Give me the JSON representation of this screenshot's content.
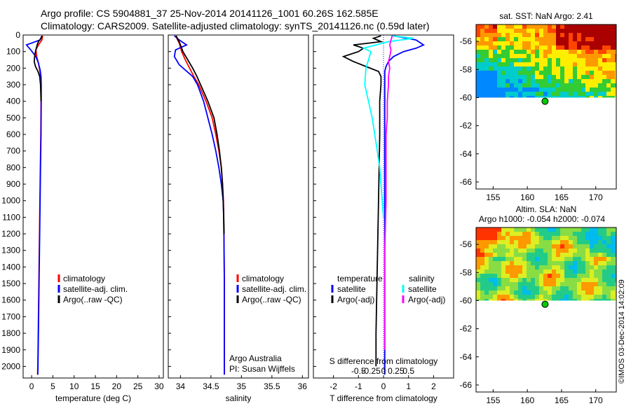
{
  "header": {
    "line1": "Argo profile: CS 5904881_37 25-Nov-2014 20141126_1001 60.26S 162.585E",
    "line2": "Climatology: CARS2009. Satellite-adjusted climatology: synTS_20141126.nc (0.59d later)"
  },
  "colors": {
    "climatology": "#ff0000",
    "satellite": "#0000ff",
    "argo": "#000000",
    "satellite_salinity": "#00ffff",
    "argo_salinity": "#ff00ff",
    "argo_marker": "#00cc00"
  },
  "chart_data": [
    {
      "id": "temperature",
      "type": "line",
      "xlabel": "temperature (deg C)",
      "ylabel": "",
      "xlim": [
        -2,
        31
      ],
      "ylim": [
        2070,
        0
      ],
      "x_ticks": [
        0,
        5,
        10,
        15,
        20,
        25,
        30
      ],
      "y_ticks": [
        0,
        100,
        200,
        300,
        400,
        500,
        600,
        700,
        800,
        900,
        1000,
        1100,
        1200,
        1300,
        1400,
        1500,
        1600,
        1700,
        1800,
        1900,
        2000
      ],
      "legend": {
        "entries": [
          "climatology",
          "satellite-adj. clim.",
          "Argo(..raw -QC)"
        ],
        "position": "lower-center"
      },
      "series": [
        {
          "name": "climatology",
          "color": "#ff0000",
          "depth": [
            5,
            30,
            60,
            90,
            130,
            170,
            210,
            250,
            300,
            400,
            600,
            800,
            1000,
            1200,
            1400,
            1600,
            1800,
            2000,
            2050
          ],
          "values": [
            2.6,
            2.4,
            1.6,
            1.0,
            1.2,
            1.6,
            1.9,
            2.1,
            2.2,
            2.2,
            2.15,
            2.05,
            1.95,
            1.85,
            1.75,
            1.65,
            1.55,
            1.45,
            1.4
          ]
        },
        {
          "name": "satellite-adj. clim.",
          "color": "#0000ff",
          "depth": [
            5,
            30,
            60,
            90,
            130,
            170,
            210,
            250,
            300,
            400,
            600,
            800,
            1000,
            1200,
            1400,
            1600,
            1800,
            2000,
            2050
          ],
          "values": [
            2.4,
            2.0,
            -1.2,
            -0.2,
            1.0,
            1.6,
            2.0,
            2.2,
            2.25,
            2.25,
            2.2,
            2.1,
            2.0,
            1.9,
            1.8,
            1.7,
            1.6,
            1.5,
            1.45
          ]
        },
        {
          "name": "Argo(..raw -QC)",
          "color": "#000000",
          "depth": [
            5,
            20,
            40,
            60,
            80,
            100,
            130,
            160,
            190,
            220,
            250,
            300,
            400
          ],
          "values": [
            2.5,
            2.2,
            1.6,
            1.3,
            1.1,
            0.9,
            0.7,
            0.6,
            0.9,
            1.5,
            1.9,
            2.1,
            2.2
          ]
        }
      ]
    },
    {
      "id": "salinity",
      "type": "line",
      "xlabel": "salinity",
      "ylabel": "",
      "xlim": [
        33.8,
        36.1
      ],
      "ylim": [
        2070,
        0
      ],
      "x_ticks": [
        34,
        34.5,
        35,
        35.5,
        36
      ],
      "legend": {
        "entries": [
          "climatology",
          "satellite-adj. clim.",
          "Argo(..raw -QC)"
        ],
        "position": "lower-center"
      },
      "annotations": [
        "Argo Australia",
        "PI: Susan Wijffels"
      ],
      "series": [
        {
          "name": "climatology",
          "color": "#ff0000",
          "depth": [
            5,
            50,
            100,
            150,
            200,
            250,
            300,
            400,
            500,
            600,
            700,
            800,
            900,
            1000,
            1100,
            1300,
            1500,
            1700,
            1900,
            2050
          ],
          "values": [
            33.92,
            33.98,
            34.02,
            34.08,
            34.15,
            34.22,
            34.3,
            34.42,
            34.52,
            34.58,
            34.63,
            34.67,
            34.69,
            34.705,
            34.71,
            34.715,
            34.72,
            34.72,
            34.72,
            34.72
          ]
        },
        {
          "name": "satellite-adj. clim.",
          "color": "#0000ff",
          "depth": [
            5,
            30,
            60,
            90,
            130,
            180,
            250,
            300,
            400,
            500,
            600,
            700,
            800,
            900,
            1000,
            1100,
            1300,
            1500,
            1700,
            1900,
            2050
          ],
          "values": [
            33.9,
            33.98,
            34.1,
            33.92,
            33.9,
            33.98,
            34.2,
            34.28,
            34.38,
            34.45,
            34.52,
            34.58,
            34.63,
            34.67,
            34.7,
            34.71,
            34.715,
            34.72,
            34.72,
            34.72,
            34.72
          ]
        },
        {
          "name": "Argo(..raw -QC)",
          "color": "#000000",
          "depth": [
            5,
            50,
            100,
            150,
            200,
            250,
            300,
            400,
            500,
            600,
            700,
            800,
            900,
            1000,
            1100,
            1200
          ],
          "values": [
            33.93,
            33.99,
            34.04,
            34.12,
            34.2,
            34.27,
            34.33,
            34.45,
            34.55,
            34.6,
            34.64,
            34.67,
            34.69,
            34.7,
            34.71,
            34.715
          ]
        }
      ]
    },
    {
      "id": "difference",
      "type": "line",
      "xlabel": "T difference from climatology",
      "top_label": "S difference from climatology",
      "xlim": [
        -2.8,
        2.8
      ],
      "ylim": [
        2070,
        0
      ],
      "x_ticks": [
        -2,
        -1,
        0,
        1,
        2
      ],
      "s_ticks": [
        "-0.5",
        "-0.25",
        "0",
        "0.25",
        "0.5"
      ],
      "legend": {
        "left_title": "temperature",
        "right_title": "salinity",
        "left_entries": [
          "satellite",
          "Argo(-adj)"
        ],
        "right_entries": [
          "satellite",
          "Argo(-adj)"
        ],
        "position": "lower-center"
      },
      "series": [
        {
          "name": "temperature satellite",
          "color": "#0000ff",
          "depth": [
            5,
            30,
            60,
            80,
            100,
            130,
            160,
            190,
            220,
            250,
            300,
            500,
            1000,
            1500,
            2000,
            2050
          ],
          "values": [
            0.4,
            1.3,
            1.6,
            1.3,
            0.8,
            0.4,
            0.2,
            0.1,
            0.05,
            0.05,
            0.05,
            0.05,
            0.05,
            0.05,
            0.05,
            0.05
          ]
        },
        {
          "name": "temperature Argo(-adj)",
          "color": "#000000",
          "depth": [
            5,
            20,
            40,
            60,
            80,
            100,
            130,
            160,
            190,
            220,
            250,
            300,
            400,
            600,
            1000,
            1400,
            1800,
            2000
          ],
          "values": [
            -0.1,
            -0.4,
            -0.1,
            -1.2,
            -0.8,
            -1.0,
            -1.6,
            -1.2,
            -0.7,
            -0.2,
            -0.1,
            -0.1,
            -0.15,
            -0.15,
            -0.2,
            -0.25,
            -0.3,
            -0.3
          ]
        },
        {
          "name": "salinity satellite",
          "color": "#00ffff",
          "depth": [
            5,
            20,
            40,
            60,
            80,
            100,
            150,
            200,
            300,
            400,
            500,
            600,
            700,
            800,
            900,
            1000,
            1100
          ],
          "values": [
            0.3,
            1.2,
            0.2,
            -0.3,
            -0.8,
            -0.5,
            -0.6,
            -0.7,
            -0.75,
            -0.6,
            -0.45,
            -0.35,
            -0.25,
            -0.15,
            -0.1,
            -0.05,
            0
          ]
        },
        {
          "name": "salinity Argo(-adj)",
          "color": "#ff00ff",
          "depth": [
            5,
            30,
            60,
            90,
            130,
            160,
            200,
            250,
            300,
            400,
            500,
            600,
            800,
            1000,
            1300,
            1600,
            1900
          ],
          "values": [
            0.35,
            0.3,
            0.25,
            0.3,
            0.25,
            0.2,
            0.25,
            0.2,
            0.2,
            0.15,
            0.15,
            0.1,
            0.1,
            0.1,
            0.05,
            0.05,
            0.05
          ]
        }
      ]
    },
    {
      "id": "sst_map",
      "type": "heatmap",
      "title": "sat. SST: NaN Argo: 2.41",
      "x_ticks": [
        155,
        160,
        165,
        170
      ],
      "y_ticks": [
        -56,
        -58,
        -60,
        -62,
        -64,
        -66
      ],
      "xlim": [
        152.5,
        173
      ],
      "ylim": [
        -66.5,
        -54.8
      ],
      "data_lat_min": -60,
      "argo_position": {
        "lon": 162.585,
        "lat": -60.26
      }
    },
    {
      "id": "sla_map",
      "type": "heatmap",
      "title_line1": "Altim. SLA: NaN",
      "title_line2": "Argo h1000: -0.054 h2000: -0.074",
      "x_ticks": [
        155,
        160,
        165,
        170
      ],
      "y_ticks": [
        -56,
        -58,
        -60,
        -62,
        -64,
        -66
      ],
      "xlim": [
        152.5,
        173
      ],
      "ylim": [
        -66.5,
        -54.8
      ],
      "data_lat_min": -60,
      "argo_position": {
        "lon": 162.585,
        "lat": -60.26
      }
    }
  ],
  "watermark": "©IMOS 03-Dec-2014 14:02:09"
}
